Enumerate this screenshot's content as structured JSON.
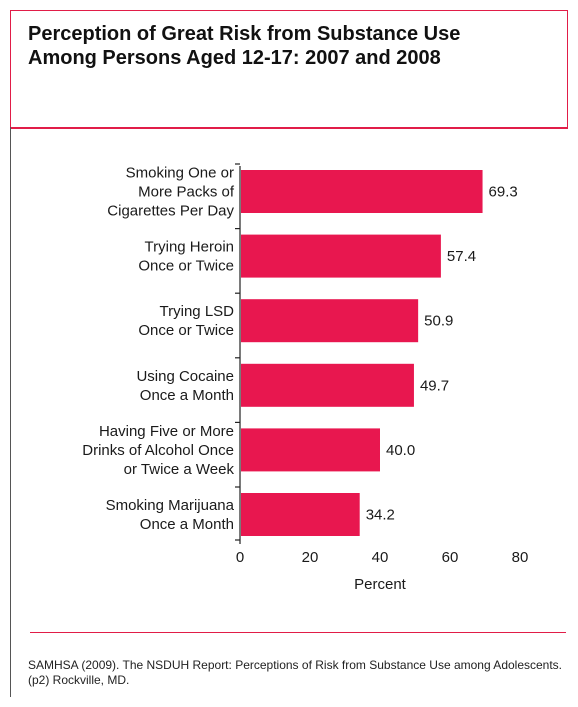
{
  "title": "Perception of Great Risk from Substance Use Among Persons Aged 12-17: 2007 and 2008",
  "source": "SAMHSA (2009). The NSDUH Report: Perceptions of Risk from Substance Use among Adolescents. (p2) Rockville, MD.",
  "colors": {
    "bar": "#e8174f",
    "frame": "#e11d48"
  },
  "chart_data": {
    "type": "bar",
    "orientation": "horizontal",
    "categories": [
      [
        "Smoking One or",
        "More Packs of",
        "Cigarettes Per Day"
      ],
      [
        "Trying Heroin",
        "Once or Twice"
      ],
      [
        "Trying LSD",
        "Once or Twice"
      ],
      [
        "Using Cocaine",
        "Once a Month"
      ],
      [
        "Having Five or More",
        "Drinks of Alcohol Once",
        "or Twice a Week"
      ],
      [
        "Smoking Marijuana",
        "Once a Month"
      ]
    ],
    "values": [
      69.3,
      57.4,
      50.9,
      49.7,
      40.0,
      34.2
    ],
    "value_labels": [
      "69.3",
      "57.4",
      "50.9",
      "49.7",
      "40.0",
      "34.2"
    ],
    "xlabel": "Percent",
    "xlim": [
      0,
      80
    ],
    "xticks": [
      "0",
      "20",
      "40",
      "60",
      "80"
    ],
    "grid": false,
    "legend": "none"
  }
}
